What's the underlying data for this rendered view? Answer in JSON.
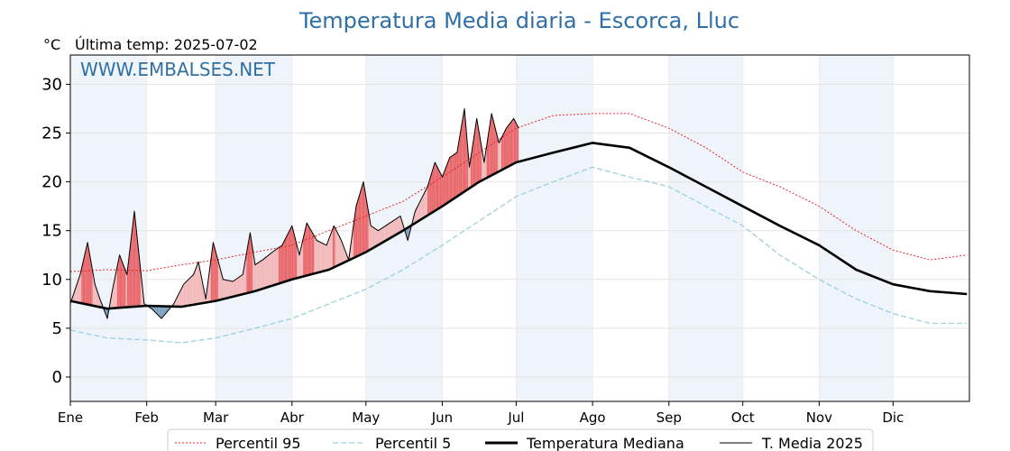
{
  "header": {
    "title": "Temperatura Media diaria - Escorca, Lluc",
    "unit": "°C",
    "last_temp": "Última temp: 2025-07-02",
    "watermark": "WWW.EMBALSES.NET"
  },
  "colors": {
    "title": "#2f6fa6",
    "p95": "#e8262a",
    "p5": "#9ccfdf",
    "median": "#000000",
    "year": "#000000",
    "above_fill": "#f2b9ba",
    "above_fill_strong": "#e8676b",
    "below_fill": "#7ca0c0",
    "band": "#eef4fa"
  },
  "chart_data": {
    "type": "line",
    "xlabel": "",
    "ylabel": "°C",
    "ylim": [
      -2.5,
      33
    ],
    "yticks": [
      0,
      5,
      10,
      15,
      20,
      25,
      30
    ],
    "month_labels": [
      "Ene",
      "Feb",
      "Mar",
      "Abr",
      "May",
      "Jun",
      "Jul",
      "Ago",
      "Sep",
      "Oct",
      "Nov",
      "Dic"
    ],
    "grid": true,
    "legend_placement": "bottom",
    "series": [
      {
        "name": "Percentil 95",
        "style": "dotted",
        "x_day": [
          0,
          15,
          31,
          45,
          59,
          75,
          90,
          105,
          120,
          135,
          151,
          166,
          181,
          196,
          212,
          227,
          243,
          258,
          273,
          288,
          304,
          319,
          334,
          349,
          364
        ],
        "values": [
          10.8,
          11.0,
          10.9,
          11.5,
          12.0,
          12.8,
          13.5,
          15.0,
          16.5,
          18.0,
          20.5,
          23.0,
          25.5,
          26.8,
          27.0,
          27.0,
          25.5,
          23.5,
          21.0,
          19.5,
          17.5,
          15.0,
          13.0,
          12.0,
          12.5
        ]
      },
      {
        "name": "Percentil 5",
        "style": "dashed",
        "x_day": [
          0,
          15,
          31,
          45,
          59,
          75,
          90,
          105,
          120,
          135,
          151,
          166,
          181,
          196,
          212,
          227,
          243,
          258,
          273,
          288,
          304,
          319,
          334,
          349,
          364
        ],
        "values": [
          4.8,
          4.0,
          3.8,
          3.5,
          4.0,
          5.0,
          6.0,
          7.5,
          9.0,
          11.0,
          13.5,
          16.0,
          18.5,
          20.0,
          21.5,
          20.5,
          19.5,
          17.5,
          15.5,
          12.5,
          10.0,
          8.0,
          6.5,
          5.5,
          5.5
        ]
      },
      {
        "name": "Temperatura Mediana",
        "style": "solid-thick",
        "x_day": [
          0,
          15,
          31,
          45,
          59,
          75,
          90,
          105,
          120,
          135,
          151,
          166,
          181,
          196,
          212,
          227,
          243,
          258,
          273,
          288,
          304,
          319,
          334,
          349,
          364
        ],
        "values": [
          7.8,
          7.0,
          7.3,
          7.2,
          7.8,
          8.8,
          10.0,
          11.0,
          12.8,
          15.0,
          17.5,
          20.0,
          22.0,
          23.0,
          24.0,
          23.5,
          21.5,
          19.5,
          17.5,
          15.5,
          13.5,
          11.0,
          9.5,
          8.8,
          8.5
        ]
      },
      {
        "name": "T. Media 2025",
        "style": "solid-thin",
        "x_day": [
          0,
          4,
          7,
          10,
          12,
          15,
          17,
          20,
          23,
          26,
          30,
          33,
          37,
          42,
          46,
          50,
          52,
          55,
          58,
          62,
          66,
          70,
          73,
          75,
          78,
          82,
          86,
          90,
          93,
          96,
          100,
          104,
          107,
          110,
          113,
          116,
          119,
          122,
          125,
          128,
          131,
          134,
          137,
          140,
          142,
          145,
          148,
          151,
          154,
          157,
          160,
          162,
          165,
          168,
          171,
          174,
          177,
          180,
          182
        ],
        "values": [
          7.5,
          10.5,
          13.8,
          9.5,
          8.0,
          6.0,
          8.8,
          12.5,
          10.5,
          17.0,
          7.5,
          7.0,
          6.0,
          7.5,
          9.5,
          10.5,
          11.8,
          8.0,
          13.8,
          10.0,
          9.8,
          10.5,
          14.8,
          11.5,
          12.0,
          12.8,
          13.5,
          15.5,
          12.5,
          15.8,
          14.0,
          13.5,
          15.5,
          14.0,
          12.0,
          17.5,
          20.0,
          15.5,
          15.0,
          15.5,
          16.0,
          16.5,
          14.0,
          17.0,
          18.0,
          19.5,
          22.0,
          20.5,
          22.5,
          23.0,
          27.5,
          21.5,
          26.5,
          22.0,
          27.0,
          24.0,
          25.5,
          26.5,
          25.5
        ]
      }
    ]
  },
  "legend": [
    {
      "label": "Percentil 95"
    },
    {
      "label": "Percentil 5"
    },
    {
      "label": "Temperatura Mediana"
    },
    {
      "label": "T. Media 2025"
    }
  ]
}
